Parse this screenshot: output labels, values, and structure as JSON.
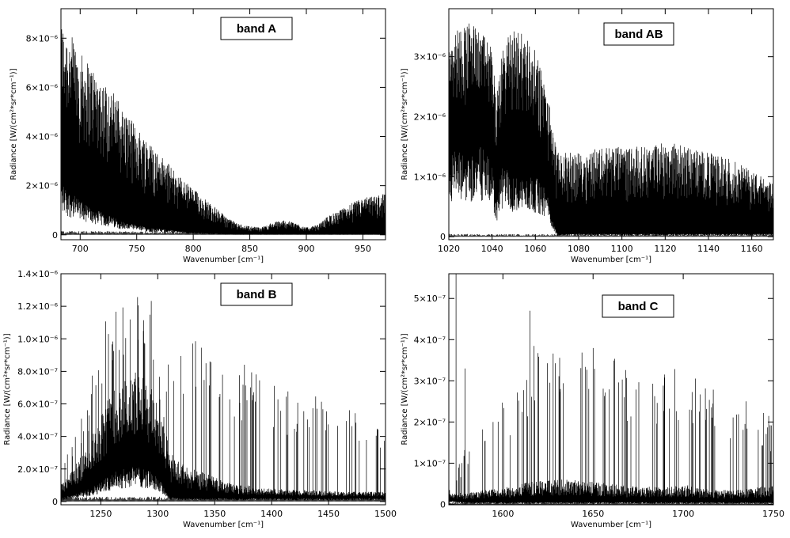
{
  "figure": {
    "panels": [
      {
        "band_label": "band A",
        "xlabel": "Wavenumber [cm⁻¹]",
        "ylabel": "Radiance [W/(cm²*sr*cm⁻¹)]",
        "x_ticks": [
          "700",
          "750",
          "800",
          "850",
          "900",
          "950"
        ],
        "y_ticks": [
          "0",
          "2×10⁻⁶",
          "4×10⁻⁶",
          "6×10⁻⁶",
          "8×10⁻⁶"
        ]
      },
      {
        "band_label": "band AB",
        "xlabel": "Wavenumber [cm⁻¹]",
        "ylabel": "Radiance [W/(cm²*sr*cm⁻¹)]",
        "x_ticks": [
          "1020",
          "1040",
          "1060",
          "1080",
          "1100",
          "1120",
          "1140",
          "1160"
        ],
        "y_ticks": [
          "0",
          "1×10⁻⁶",
          "2×10⁻⁶",
          "3×10⁻⁶"
        ]
      },
      {
        "band_label": "band B",
        "xlabel": "Wavenumber [cm⁻¹]",
        "ylabel": "Radiance [W/(cm²*sr*cm⁻¹)]",
        "x_ticks": [
          "1250",
          "1300",
          "1350",
          "1400",
          "1450",
          "1500"
        ],
        "y_ticks": [
          "0",
          "2.0×10⁻⁷",
          "4.0×10⁻⁷",
          "6.0×10⁻⁷",
          "8.0×10⁻⁷",
          "1.0×10⁻⁶",
          "1.2×10⁻⁶",
          "1.4×10⁻⁶"
        ]
      },
      {
        "band_label": "band C",
        "xlabel": "Wavenumber [cm⁻¹]",
        "ylabel": "Radiance [W/(cm²*sr*cm⁻¹)]",
        "x_ticks": [
          "1600",
          "1650",
          "1700",
          "1750"
        ],
        "y_ticks": [
          "0",
          "1×10⁻⁷",
          "2×10⁻⁷",
          "3×10⁻⁷",
          "4×10⁻⁷",
          "5×10⁻⁷"
        ]
      }
    ]
  },
  "chart_data": [
    {
      "type": "line",
      "title": "band A",
      "xlabel": "Wavenumber [cm⁻¹]",
      "ylabel": "Radiance [W/(cm²*sr*cm⁻¹)]",
      "xlim": [
        683,
        970
      ],
      "ylim": [
        -2e-07,
        9.2e-06
      ],
      "x_tick_values": [
        700,
        750,
        800,
        850,
        900,
        950
      ],
      "y_tick_values": [
        0,
        2e-06,
        4e-06,
        6e-06,
        8e-06
      ],
      "envelope": {
        "x": [
          683,
          690,
          700,
          710,
          720,
          730,
          740,
          750,
          760,
          770,
          780,
          790,
          800,
          810,
          820,
          830,
          840,
          850,
          860,
          870,
          880,
          890,
          900,
          910,
          920,
          930,
          940,
          950,
          960,
          970
        ],
        "upper": [
          8.7e-06,
          8.3e-06,
          7.4e-06,
          6.9e-06,
          6.3e-06,
          5.8e-06,
          5e-06,
          4.4e-06,
          3.9e-06,
          3.3e-06,
          2.8e-06,
          2.3e-06,
          1.9e-06,
          1.5e-06,
          1.1e-06,
          7e-07,
          4.5e-07,
          3.5e-07,
          3e-07,
          5e-07,
          6e-07,
          5e-07,
          3e-07,
          4e-07,
          8e-07,
          1e-06,
          1.3e-06,
          1.5e-06,
          1.6e-06,
          1.7e-06
        ],
        "lower": [
          2.2e-06,
          1.8e-06,
          1.4e-06,
          1.1e-06,
          9e-07,
          7e-07,
          5e-07,
          4e-07,
          3e-07,
          2.5e-07,
          2e-07,
          1.5e-07,
          1e-07,
          8e-08,
          5e-08,
          3e-08,
          2e-08,
          2e-08,
          2e-08,
          2e-08,
          2e-08,
          2e-08,
          2e-08,
          2e-08,
          2e-08,
          2e-08,
          2e-08,
          2e-08,
          2e-08,
          2e-08
        ]
      },
      "baseline_level": 1e-07
    },
    {
      "type": "line",
      "title": "band AB",
      "xlabel": "Wavenumber [cm⁻¹]",
      "ylabel": "Radiance [W/(cm²*sr*cm⁻¹)]",
      "xlim": [
        1020,
        1170
      ],
      "ylim": [
        -5e-08,
        3.8e-06
      ],
      "x_tick_values": [
        1020,
        1040,
        1060,
        1080,
        1100,
        1120,
        1140,
        1160
      ],
      "y_tick_values": [
        0,
        1e-06,
        2e-06,
        3e-06
      ],
      "envelope": {
        "x": [
          1020,
          1025,
          1030,
          1035,
          1040,
          1042,
          1045,
          1050,
          1055,
          1060,
          1065,
          1068,
          1070,
          1080,
          1090,
          1100,
          1110,
          1120,
          1130,
          1140,
          1150,
          1160,
          1170
        ],
        "upper": [
          3.4e-06,
          3.5e-06,
          3.6e-06,
          3.4e-06,
          3.2e-06,
          2.3e-06,
          3.2e-06,
          3.5e-06,
          3.4e-06,
          3.1e-06,
          2.5e-06,
          1.9e-06,
          1.4e-06,
          1.4e-06,
          1.5e-06,
          1.5e-06,
          1.5e-06,
          1.6e-06,
          1.5e-06,
          1.4e-06,
          1.3e-06,
          1.1e-06,
          9e-07
        ],
        "lower": [
          1.5e-06,
          1.4e-06,
          1.4e-06,
          1.5e-06,
          1.2e-06,
          6e-07,
          1.2e-06,
          1e-06,
          1e-06,
          1e-06,
          8e-07,
          3e-07,
          5e-08,
          5e-08,
          5e-08,
          5e-08,
          5e-08,
          5e-08,
          5e-08,
          5e-08,
          5e-08,
          5e-08,
          5e-08
        ]
      },
      "baseline_level": 3e-08
    },
    {
      "type": "line",
      "title": "band B",
      "xlabel": "Wavenumber [cm⁻¹]",
      "ylabel": "Radiance [W/(cm²*sr*cm⁻¹)]",
      "xlim": [
        1215,
        1500
      ],
      "ylim": [
        -2e-08,
        1.4e-06
      ],
      "x_tick_values": [
        1250,
        1300,
        1350,
        1400,
        1450,
        1500
      ],
      "y_tick_values": [
        0,
        2e-07,
        4e-07,
        6e-07,
        8e-07,
        1e-06,
        1.2e-06,
        1.4e-06
      ],
      "envelope": {
        "x": [
          1215,
          1230,
          1240,
          1250,
          1260,
          1270,
          1280,
          1290,
          1300,
          1305,
          1310,
          1320,
          1330,
          1340,
          1350,
          1360,
          1370,
          1380,
          1390,
          1400,
          1420,
          1440,
          1460,
          1480,
          1500
        ],
        "upper": [
          2e-07,
          5e-07,
          7e-07,
          1.1e-06,
          1.2e-06,
          1.3e-06,
          1.3e-06,
          1.2e-06,
          1.3e-06,
          1.2e-06,
          1.05e-06,
          1e-06,
          1e-06,
          1e-06,
          9.5e-07,
          9e-07,
          9e-07,
          8.5e-07,
          8e-07,
          7.5e-07,
          7e-07,
          6.5e-07,
          6e-07,
          5.5e-07,
          5e-07
        ],
        "dense_upper": [
          1e-07,
          2.5e-07,
          3.5e-07,
          5.5e-07,
          7e-07,
          7.5e-07,
          8e-07,
          7.5e-07,
          6.5e-07,
          6e-07,
          3e-07,
          2.5e-07,
          2e-07,
          1.8e-07,
          1.5e-07,
          1.2e-07,
          1e-07,
          1e-07,
          8e-08,
          8e-08,
          7e-08,
          7e-08,
          6e-08,
          6e-08,
          6e-08
        ],
        "lower": [
          2e-08,
          5e-08,
          8e-08,
          1.2e-07,
          1.8e-07,
          2e-07,
          2.2e-07,
          2e-07,
          1.5e-07,
          1e-07,
          3e-08,
          2e-08,
          2e-08,
          2e-08,
          2e-08,
          2e-08,
          2e-08,
          2e-08,
          2e-08,
          2e-08,
          2e-08,
          2e-08,
          2e-08,
          2e-08,
          2e-08
        ]
      },
      "baseline_level": 2e-08
    },
    {
      "type": "line",
      "title": "band C",
      "xlabel": "Wavenumber [cm⁻¹]",
      "ylabel": "Radiance [W/(cm²*sr*cm⁻¹)]",
      "xlim": [
        1570,
        1750
      ],
      "ylim": [
        -1e-09,
        5.6e-07
      ],
      "x_tick_values": [
        1600,
        1650,
        1700,
        1750
      ],
      "y_tick_values": [
        0,
        1e-07,
        2e-07,
        3e-07,
        4e-07,
        5e-07
      ],
      "envelope": {
        "x": [
          1570,
          1580,
          1590,
          1600,
          1610,
          1620,
          1630,
          1640,
          1650,
          1660,
          1670,
          1680,
          1690,
          1700,
          1710,
          1720,
          1730,
          1740,
          1750
        ],
        "upper": [
          4e-08,
          1.5e-07,
          2e-07,
          2.5e-07,
          3e-07,
          4.7e-07,
          3.8e-07,
          3.6e-07,
          4.1e-07,
          3.6e-07,
          3.5e-07,
          3.4e-07,
          3.5e-07,
          3.3e-07,
          3e-07,
          2.8e-07,
          2.6e-07,
          2.4e-07,
          2.2e-07
        ],
        "dense_upper": [
          2.5e-08,
          3e-08,
          3.5e-08,
          4e-08,
          5e-08,
          6e-08,
          6e-08,
          6e-08,
          5.5e-08,
          5e-08,
          4.5e-08,
          4.5e-08,
          4e-08,
          5e-08,
          4e-08,
          3.5e-08,
          3.5e-08,
          4e-08,
          5e-08
        ],
        "lower": [
          1e-08,
          5e-09,
          5e-09,
          5e-09,
          5e-09,
          5e-09,
          5e-09,
          5e-09,
          5e-09,
          5e-09,
          5e-09,
          5e-09,
          5e-09,
          5e-09,
          5e-09,
          5e-09,
          5e-09,
          5e-09,
          5e-09
        ]
      },
      "spikes": [
        {
          "x": 1574,
          "y": 5.6e-07
        },
        {
          "x": 1579,
          "y": 3.3e-07
        },
        {
          "x": 1615,
          "y": 4.7e-07
        }
      ],
      "baseline_level": 3e-09
    }
  ]
}
